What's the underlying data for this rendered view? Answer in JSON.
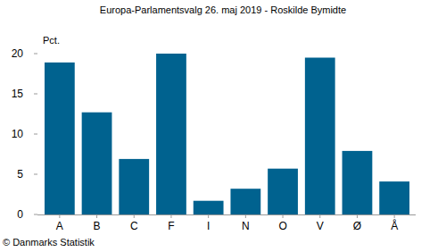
{
  "chart_data": {
    "type": "bar",
    "title": "Europa-Parlamentsvalg 26. maj 2019 - Roskilde Bymidte",
    "y_label": "Pct.",
    "categories": [
      "A",
      "B",
      "C",
      "F",
      "I",
      "N",
      "O",
      "V",
      "Ø",
      "Å"
    ],
    "values": [
      18.9,
      12.7,
      6.9,
      20.0,
      1.7,
      3.2,
      5.7,
      19.5,
      7.9,
      4.1
    ],
    "color": "#00628f",
    "ylim": [
      0,
      20
    ],
    "yticks": [
      0,
      5,
      10,
      15,
      20
    ],
    "grid": false,
    "source": "© Danmarks Statistik"
  }
}
